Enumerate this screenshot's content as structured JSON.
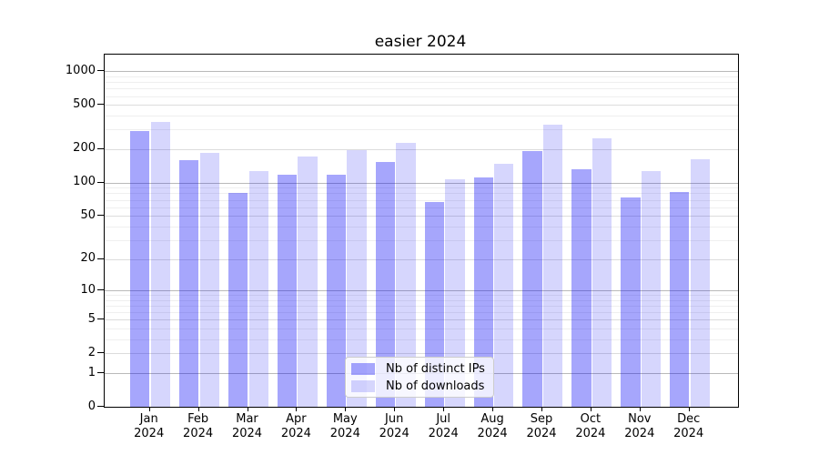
{
  "title": "easier 2024",
  "legend": {
    "items": [
      {
        "label": "Nb of distinct IPs",
        "swatch": "dark"
      },
      {
        "label": "Nb of downloads",
        "swatch": "light"
      }
    ]
  },
  "chart_data": {
    "type": "bar",
    "title": "easier 2024",
    "categories": [
      "Jan 2024",
      "Feb 2024",
      "Mar 2024",
      "Apr 2024",
      "May 2024",
      "Jun 2024",
      "Jul 2024",
      "Aug 2024",
      "Sep 2024",
      "Oct 2024",
      "Nov 2024",
      "Dec 2024"
    ],
    "series": [
      {
        "name": "Nb of distinct IPs",
        "values": [
          292,
          160,
          81,
          118,
          119,
          154,
          67,
          111,
          192,
          132,
          73,
          82
        ]
      },
      {
        "name": "Nb of downloads",
        "values": [
          350,
          187,
          128,
          172,
          197,
          228,
          107,
          148,
          330,
          252,
          127,
          163
        ]
      }
    ],
    "yticks": [
      0,
      1,
      2,
      5,
      10,
      20,
      50,
      100,
      200,
      500,
      1000
    ],
    "minor_yticks": [
      3,
      4,
      6,
      7,
      8,
      9,
      30,
      40,
      60,
      70,
      80,
      90,
      300,
      400,
      600,
      700,
      800,
      900
    ],
    "xlabel": "",
    "ylabel": "",
    "ylim": [
      0,
      1400
    ],
    "y_scale": "log10(1+y)",
    "grid": true,
    "legend_position": "lower center",
    "colors": {
      "distinct_ips": "rgba(0,0,245,0.35)",
      "downloads": "rgba(0,0,245,0.16)"
    }
  }
}
